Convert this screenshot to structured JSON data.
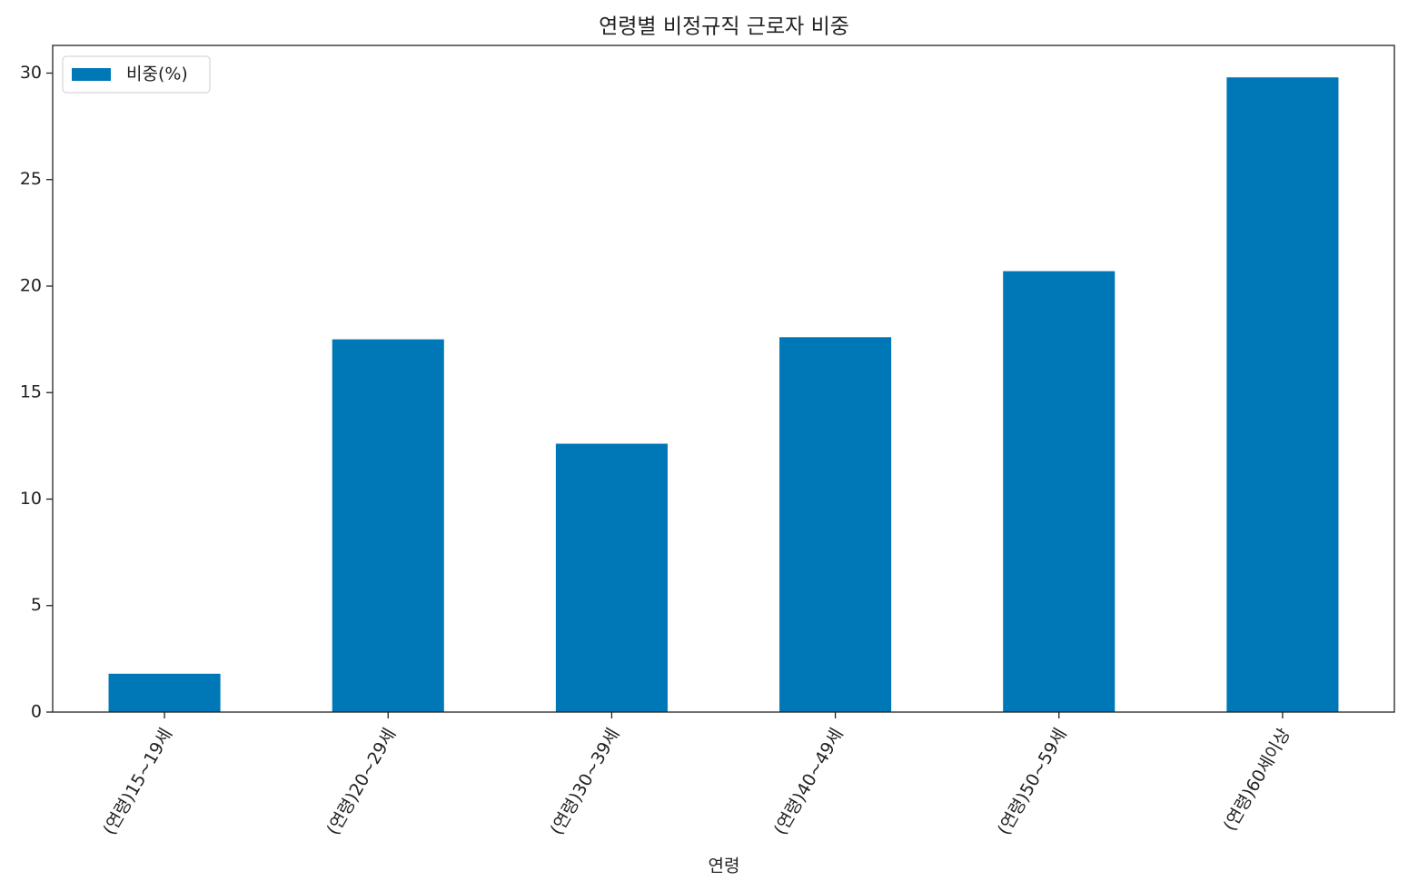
{
  "chart_data": {
    "type": "bar",
    "title": "연령별 비정규직 근로자 비중",
    "x_label": "연령",
    "categories": [
      "(연령)15~19세",
      "(연령)20~29세",
      "(연령)30~39세",
      "(연령)40~49세",
      "(연령)50~59세",
      "(연령)60세이상"
    ],
    "series": [
      {
        "name": "비중(%)",
        "color": "#0077b6",
        "values": [
          1.8,
          17.5,
          12.6,
          17.6,
          20.7,
          29.8
        ]
      }
    ],
    "ylim": [
      0,
      31.3
    ],
    "yticks": [
      0,
      5,
      10,
      15,
      20,
      25,
      30
    ],
    "grid": false,
    "legend": "upper left"
  }
}
